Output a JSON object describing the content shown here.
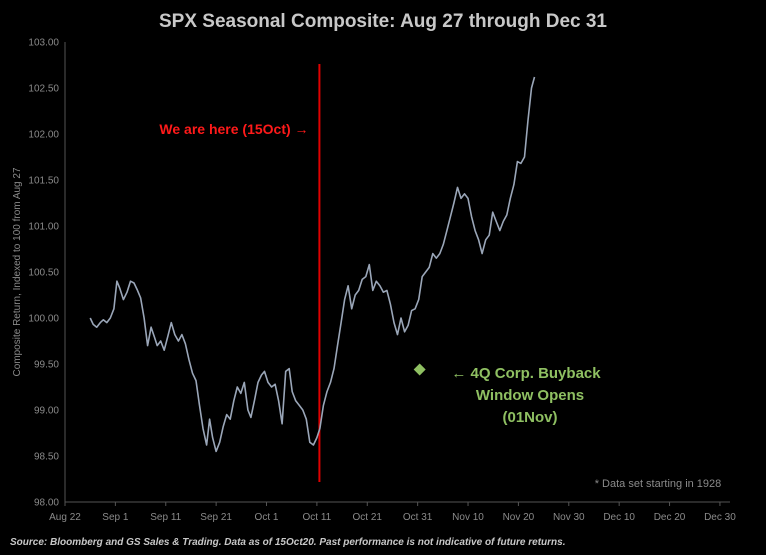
{
  "chart_data": {
    "type": "line",
    "title": "SPX Seasonal Composite: Aug 27 through Dec 31",
    "ylabel": "Composite Return, Indexed to 100 from Aug 27",
    "xlabel": "",
    "ylim": [
      98.0,
      103.0
    ],
    "y_ticks": [
      "98.00",
      "98.50",
      "99.00",
      "99.50",
      "100.00",
      "100.50",
      "101.00",
      "101.50",
      "102.00",
      "102.50",
      "103.00"
    ],
    "x_ticks": [
      {
        "label": "Aug 22",
        "day": 0
      },
      {
        "label": "Sep 1",
        "day": 10
      },
      {
        "label": "Sep 11",
        "day": 20
      },
      {
        "label": "Sep 21",
        "day": 30
      },
      {
        "label": "Oct 1",
        "day": 40
      },
      {
        "label": "Oct 11",
        "day": 50
      },
      {
        "label": "Oct 21",
        "day": 60
      },
      {
        "label": "Oct 31",
        "day": 70
      },
      {
        "label": "Nov 10",
        "day": 80
      },
      {
        "label": "Nov 20",
        "day": 90
      },
      {
        "label": "Nov 30",
        "day": 100
      },
      {
        "label": "Dec 10",
        "day": 110
      },
      {
        "label": "Dec 20",
        "day": 120
      },
      {
        "label": "Dec 30",
        "day": 130
      }
    ],
    "xlim": [
      0,
      132
    ],
    "grid": false,
    "line_color": "#9aa6b8",
    "series": [
      {
        "points": [
          [
            5.0,
            100.0
          ],
          [
            5.6,
            99.93
          ],
          [
            6.3,
            99.9
          ],
          [
            7.0,
            99.95
          ],
          [
            7.6,
            99.98
          ],
          [
            8.3,
            99.95
          ],
          [
            9.0,
            100.0
          ],
          [
            9.7,
            100.1
          ],
          [
            10.3,
            100.4
          ],
          [
            10.9,
            100.32
          ],
          [
            11.6,
            100.2
          ],
          [
            12.3,
            100.28
          ],
          [
            13.0,
            100.4
          ],
          [
            13.7,
            100.38
          ],
          [
            14.4,
            100.3
          ],
          [
            15.0,
            100.22
          ],
          [
            15.7,
            100.0
          ],
          [
            16.4,
            99.7
          ],
          [
            17.1,
            99.9
          ],
          [
            17.7,
            99.8
          ],
          [
            18.3,
            99.7
          ],
          [
            19.0,
            99.75
          ],
          [
            19.7,
            99.65
          ],
          [
            20.4,
            99.8
          ],
          [
            21.1,
            99.95
          ],
          [
            21.8,
            99.82
          ],
          [
            22.5,
            99.75
          ],
          [
            23.2,
            99.82
          ],
          [
            23.9,
            99.72
          ],
          [
            24.6,
            99.55
          ],
          [
            25.3,
            99.4
          ],
          [
            26.0,
            99.32
          ],
          [
            26.7,
            99.05
          ],
          [
            27.4,
            98.8
          ],
          [
            28.1,
            98.62
          ],
          [
            28.7,
            98.9
          ],
          [
            29.3,
            98.7
          ],
          [
            30.0,
            98.55
          ],
          [
            30.7,
            98.65
          ],
          [
            31.4,
            98.82
          ],
          [
            32.1,
            98.95
          ],
          [
            32.8,
            98.9
          ],
          [
            33.5,
            99.1
          ],
          [
            34.2,
            99.25
          ],
          [
            34.9,
            99.18
          ],
          [
            35.6,
            99.3
          ],
          [
            36.3,
            99.0
          ],
          [
            36.9,
            98.92
          ],
          [
            37.6,
            99.1
          ],
          [
            38.3,
            99.3
          ],
          [
            39.0,
            99.38
          ],
          [
            39.6,
            99.42
          ],
          [
            40.3,
            99.3
          ],
          [
            41.0,
            99.25
          ],
          [
            41.7,
            99.28
          ],
          [
            42.4,
            99.1
          ],
          [
            43.1,
            98.85
          ],
          [
            43.8,
            99.42
          ],
          [
            44.5,
            99.45
          ],
          [
            45.1,
            99.2
          ],
          [
            45.8,
            99.1
          ],
          [
            46.5,
            99.05
          ],
          [
            47.2,
            99.0
          ],
          [
            47.9,
            98.9
          ],
          [
            48.6,
            98.65
          ],
          [
            49.3,
            98.62
          ],
          [
            50.0,
            98.7
          ],
          [
            50.6,
            98.8
          ],
          [
            51.3,
            99.05
          ],
          [
            52.0,
            99.2
          ],
          [
            52.7,
            99.3
          ],
          [
            53.4,
            99.45
          ],
          [
            54.1,
            99.7
          ],
          [
            54.8,
            99.95
          ],
          [
            55.5,
            100.2
          ],
          [
            56.2,
            100.35
          ],
          [
            56.9,
            100.1
          ],
          [
            57.6,
            100.25
          ],
          [
            58.3,
            100.3
          ],
          [
            59.0,
            100.42
          ],
          [
            59.7,
            100.45
          ],
          [
            60.4,
            100.58
          ],
          [
            61.1,
            100.3
          ],
          [
            61.8,
            100.4
          ],
          [
            62.5,
            100.35
          ],
          [
            63.2,
            100.28
          ],
          [
            63.9,
            100.3
          ],
          [
            64.6,
            100.15
          ],
          [
            65.3,
            99.95
          ],
          [
            66.0,
            99.82
          ],
          [
            66.7,
            100.0
          ],
          [
            67.4,
            99.85
          ],
          [
            68.1,
            99.92
          ],
          [
            68.8,
            100.08
          ],
          [
            69.5,
            100.1
          ],
          [
            70.2,
            100.2
          ],
          [
            70.9,
            100.45
          ],
          [
            71.6,
            100.5
          ],
          [
            72.3,
            100.55
          ],
          [
            73.0,
            100.7
          ],
          [
            73.7,
            100.65
          ],
          [
            74.4,
            100.7
          ],
          [
            75.1,
            100.8
          ],
          [
            75.8,
            100.95
          ],
          [
            76.5,
            101.1
          ],
          [
            77.2,
            101.25
          ],
          [
            77.9,
            101.42
          ],
          [
            78.6,
            101.3
          ],
          [
            79.3,
            101.35
          ],
          [
            80.0,
            101.3
          ],
          [
            80.7,
            101.1
          ],
          [
            81.4,
            100.95
          ],
          [
            82.1,
            100.85
          ],
          [
            82.8,
            100.7
          ],
          [
            83.5,
            100.85
          ],
          [
            84.2,
            100.9
          ],
          [
            84.9,
            101.15
          ],
          [
            85.6,
            101.05
          ],
          [
            86.3,
            100.95
          ],
          [
            87.0,
            101.05
          ],
          [
            87.7,
            101.12
          ],
          [
            88.4,
            101.3
          ],
          [
            89.1,
            101.45
          ],
          [
            89.8,
            101.7
          ],
          [
            90.5,
            101.68
          ],
          [
            91.2,
            101.75
          ],
          [
            91.9,
            102.15
          ],
          [
            92.6,
            102.5
          ],
          [
            93.2,
            102.62
          ]
        ]
      }
    ],
    "vline": {
      "day": 50.5,
      "color": "#e10000"
    },
    "marker": {
      "day": 70.4,
      "value": 99.44,
      "color": "#8fc062"
    },
    "annotations": {
      "we_are_here": "We are here (15Oct) →",
      "buyback_line1": "←  4Q Corp.  Buyback",
      "buyback_line2": "Window Opens",
      "buyback_line3": "(01Nov)",
      "dataset_note": "* Data set starting in 1928"
    },
    "colors": {
      "title": "#c8c8c8",
      "red": "#ff1a1a",
      "green": "#8fc062",
      "axis_text": "#8a8a8a",
      "axis_line": "#555555"
    }
  },
  "footer": {
    "source": "Source: Bloomberg  and GS Sales  & Trading. Data as of 15Oct20. Past performance is not indicative of future returns."
  }
}
